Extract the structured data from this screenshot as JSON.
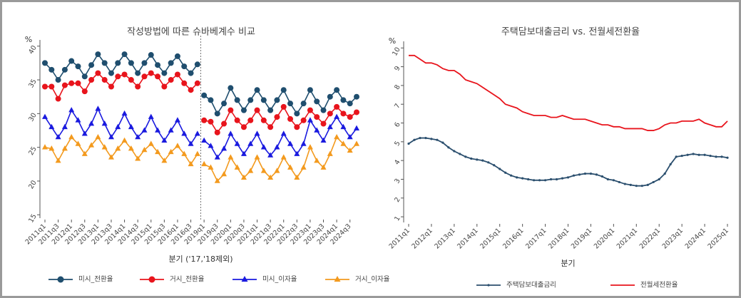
{
  "chart_data": [
    {
      "type": "line",
      "title": "작성방법에 따른 슈바베계수 비교",
      "y_label": "%",
      "x_label": "분기 ('17,'18제외)",
      "categories": [
        "2011q1",
        null,
        "2011q3",
        null,
        "2012q1",
        null,
        "2012q3",
        null,
        "2013q1",
        null,
        "2013q3",
        null,
        "2014q1",
        null,
        "2014q3",
        null,
        "2015q1",
        null,
        "2015q3",
        null,
        "2016q1",
        null,
        "2016q3",
        null,
        "2019q1",
        null,
        "2019q3",
        null,
        "2020q1",
        null,
        "2020q3",
        null,
        "2021q1",
        null,
        "2021q3",
        null,
        "2022q1",
        null,
        "2022q3",
        null,
        "2023q1",
        null,
        "2023q3",
        null,
        "2024q1",
        null,
        "2024q3",
        null
      ],
      "ylim": [
        14.5,
        40.5
      ],
      "yticks": [
        15,
        20,
        25,
        30,
        35,
        40
      ],
      "series": [
        {
          "name": "미시_전환율",
          "color": "#1f4e6e",
          "marker": "circle",
          "values": [
            37.5,
            36.5,
            35,
            36.5,
            37.8,
            37,
            35.5,
            37.2,
            38.8,
            37.5,
            36,
            37.5,
            38.8,
            37.5,
            36,
            37.5,
            38.7,
            37.2,
            36,
            37.5,
            38.5,
            37,
            36,
            37.3,
            32.7,
            32,
            30,
            31.5,
            33.8,
            32,
            30.5,
            32,
            33.5,
            32,
            30.5,
            32,
            33.5,
            31.5,
            30,
            31.5,
            33.5,
            31.8,
            30.5,
            32.5,
            33.5,
            32,
            31.5,
            32.5
          ]
        },
        {
          "name": "거시_전환율",
          "color": "#e8141c",
          "marker": "circle",
          "values": [
            34,
            34,
            32.2,
            34.2,
            34.5,
            34.5,
            33.3,
            35,
            36,
            35,
            34,
            35.5,
            35.8,
            35,
            34,
            35.5,
            36,
            35.5,
            34,
            35,
            35.8,
            34.5,
            33.5,
            34.5,
            29,
            28.8,
            27.2,
            28.5,
            30.5,
            29,
            28,
            29,
            30.5,
            29,
            28,
            29.5,
            31,
            29.2,
            28,
            29,
            30.5,
            29.5,
            28.5,
            30,
            31,
            30,
            29.5,
            30.2
          ]
        },
        {
          "name": "미시_이자율",
          "color": "#1a1adf",
          "marker": "triangle",
          "values": [
            29.5,
            28,
            26.5,
            28,
            30.5,
            29,
            27,
            28.5,
            30.7,
            28.5,
            26.5,
            28,
            30,
            28,
            26.5,
            27.5,
            29.5,
            27.5,
            26,
            27.5,
            29,
            27,
            25.5,
            27,
            26,
            25.2,
            23.5,
            24.8,
            27,
            25.5,
            24,
            25.5,
            27,
            25,
            23.8,
            25,
            27,
            25.5,
            24,
            25.5,
            29,
            27.5,
            26,
            28,
            29.5,
            28,
            26.5,
            27.8
          ]
        },
        {
          "name": "거시_이자율",
          "color": "#f39a1e",
          "marker": "triangle",
          "values": [
            25,
            24.8,
            23,
            24.8,
            26.5,
            25.5,
            24,
            25.3,
            26.5,
            25,
            23.5,
            24.8,
            26,
            24.8,
            23.3,
            24.6,
            25.5,
            24.3,
            23,
            24.3,
            25.2,
            24,
            22.5,
            24,
            22.5,
            22,
            20,
            21,
            23.5,
            22,
            20.5,
            21.5,
            23.5,
            21.5,
            20.5,
            21.5,
            23.5,
            22,
            20.5,
            22,
            25,
            23,
            22,
            24,
            26.5,
            25.5,
            24.5,
            25.5
          ]
        }
      ]
    },
    {
      "type": "line",
      "title": "주택담보대출금리 vs. 전월세전환율",
      "y_label": "%",
      "x_label": "분기",
      "categories": [
        "2011q1",
        null,
        null,
        null,
        "2012q1",
        null,
        null,
        null,
        "2013q1",
        null,
        null,
        null,
        "2014q1",
        null,
        null,
        null,
        "2015q1",
        null,
        null,
        null,
        "2016q1",
        null,
        null,
        null,
        "2017q1",
        null,
        null,
        null,
        "2018q1",
        null,
        null,
        null,
        "2019q1",
        null,
        null,
        null,
        "2020q1",
        null,
        null,
        null,
        "2021q1",
        null,
        null,
        null,
        "2022q1",
        null,
        null,
        null,
        "2023q1",
        null,
        null,
        null,
        "2024q1",
        null,
        null,
        null,
        "2025q1"
      ],
      "ylim": [
        0.7,
        10.2
      ],
      "yticks": [
        1,
        2,
        3,
        4,
        5,
        6,
        7,
        8,
        9,
        10
      ],
      "series": [
        {
          "name": "주택담보대출금리",
          "color": "#2b4f6e",
          "marker": "dot",
          "values": [
            4.9,
            5.1,
            5.2,
            5.2,
            5.15,
            5.1,
            4.95,
            4.7,
            4.5,
            4.35,
            4.2,
            4.1,
            4.05,
            4.0,
            3.9,
            3.75,
            3.55,
            3.35,
            3.2,
            3.1,
            3.05,
            3.0,
            2.95,
            2.95,
            2.95,
            3.0,
            3.0,
            3.05,
            3.1,
            3.2,
            3.25,
            3.3,
            3.3,
            3.25,
            3.15,
            3.0,
            2.95,
            2.85,
            2.75,
            2.7,
            2.65,
            2.65,
            2.7,
            2.85,
            3.0,
            3.3,
            3.8,
            4.2,
            4.25,
            4.3,
            4.35,
            4.3,
            4.3,
            4.25,
            4.2,
            4.2,
            4.15
          ]
        },
        {
          "name": "전월세전환율",
          "color": "#e8141c",
          "values": [
            9.6,
            9.6,
            9.4,
            9.2,
            9.2,
            9.1,
            8.9,
            8.8,
            8.8,
            8.6,
            8.3,
            8.2,
            8.1,
            7.9,
            7.7,
            7.5,
            7.3,
            7.0,
            6.9,
            6.8,
            6.6,
            6.5,
            6.4,
            6.4,
            6.4,
            6.3,
            6.3,
            6.4,
            6.3,
            6.2,
            6.2,
            6.2,
            6.1,
            6.0,
            5.9,
            5.9,
            5.8,
            5.8,
            5.7,
            5.7,
            5.7,
            5.7,
            5.6,
            5.6,
            5.7,
            5.9,
            6.0,
            6.0,
            6.1,
            6.1,
            6.1,
            6.2,
            6.0,
            5.9,
            5.8,
            5.8,
            6.1
          ]
        }
      ]
    }
  ]
}
